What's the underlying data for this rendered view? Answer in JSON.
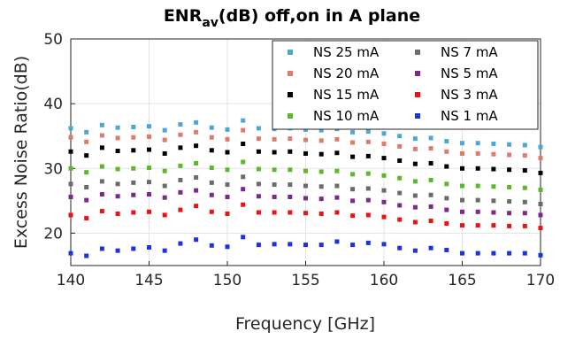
{
  "chart_data": {
    "type": "scatter",
    "title": "ENR",
    "title_subscript": "av",
    "title_rest": "(dB) off,on in A plane",
    "xlabel": "Frequency [GHz]",
    "ylabel": "Excess Noise Ratio(dB)",
    "xlim": [
      140,
      170
    ],
    "ylim": [
      15,
      50
    ],
    "xticks": [
      140,
      145,
      150,
      155,
      160,
      165,
      170
    ],
    "yticks": [
      20,
      30,
      40,
      50
    ],
    "grid": true,
    "legend_position": "top-right",
    "x": [
      140,
      141,
      142,
      143,
      144,
      145,
      146,
      147,
      148,
      149,
      150,
      151,
      152,
      153,
      154,
      155,
      156,
      157,
      158,
      159,
      160,
      161,
      162,
      163,
      164,
      165,
      166,
      167,
      168,
      169,
      170
    ],
    "series": [
      {
        "name": "NS 25 mA",
        "color": "#4fa6d6",
        "values": [
          36.2,
          35.6,
          36.7,
          36.3,
          36.4,
          36.5,
          35.9,
          36.8,
          37.1,
          36.3,
          36.0,
          37.4,
          36.2,
          36.1,
          36.2,
          36.0,
          35.9,
          36.1,
          35.6,
          35.7,
          35.4,
          35.0,
          34.6,
          34.7,
          34.2,
          33.9,
          33.9,
          33.8,
          33.7,
          33.6,
          33.3
        ]
      },
      {
        "name": "NS 20 mA",
        "color": "#de7b6c",
        "values": [
          34.8,
          34.1,
          35.1,
          34.7,
          34.8,
          34.9,
          34.4,
          35.2,
          35.6,
          34.8,
          34.5,
          35.9,
          34.6,
          34.5,
          34.6,
          34.4,
          34.3,
          34.5,
          34.0,
          34.1,
          33.8,
          33.4,
          33.0,
          33.1,
          32.6,
          32.3,
          32.3,
          32.2,
          32.1,
          32.0,
          31.6
        ]
      },
      {
        "name": "NS 15 mA",
        "color": "#000000",
        "values": [
          32.6,
          32.0,
          33.2,
          32.7,
          32.8,
          32.9,
          32.3,
          33.2,
          33.5,
          32.8,
          32.5,
          33.8,
          32.6,
          32.5,
          32.6,
          32.3,
          32.2,
          32.4,
          31.8,
          31.9,
          31.6,
          31.2,
          30.7,
          30.8,
          30.3,
          30.0,
          30.0,
          29.9,
          29.8,
          29.7,
          29.3
        ]
      },
      {
        "name": "NS 10 mA",
        "color": "#5cb82a",
        "values": [
          30.0,
          29.4,
          30.3,
          29.9,
          30.0,
          30.1,
          29.6,
          30.4,
          30.8,
          30.1,
          29.8,
          31.0,
          29.9,
          29.8,
          29.8,
          29.6,
          29.5,
          29.6,
          29.1,
          29.2,
          28.9,
          28.5,
          28.0,
          28.2,
          27.6,
          27.3,
          27.3,
          27.2,
          27.1,
          27.0,
          26.7
        ]
      },
      {
        "name": "NS 7 mA",
        "color": "#6b6b6b",
        "values": [
          27.6,
          27.1,
          28.0,
          27.6,
          27.8,
          27.9,
          27.3,
          28.2,
          28.6,
          27.8,
          27.5,
          28.7,
          27.6,
          27.5,
          27.5,
          27.3,
          27.2,
          27.3,
          26.8,
          26.9,
          26.6,
          26.2,
          25.8,
          25.9,
          25.4,
          25.1,
          25.1,
          25.0,
          24.9,
          24.8,
          24.5
        ]
      },
      {
        "name": "NS 5 mA",
        "color": "#7b2a8a",
        "values": [
          25.6,
          25.1,
          26.0,
          25.7,
          25.9,
          26.0,
          25.5,
          26.3,
          26.6,
          25.9,
          25.6,
          26.8,
          25.7,
          25.6,
          25.6,
          25.4,
          25.3,
          25.5,
          25.0,
          25.1,
          24.8,
          24.3,
          24.0,
          24.1,
          23.6,
          23.3,
          23.3,
          23.2,
          23.1,
          23.1,
          22.8
        ]
      },
      {
        "name": "NS 3 mA",
        "color": "#ee1111",
        "values": [
          22.8,
          22.3,
          23.4,
          23.0,
          23.2,
          23.3,
          22.8,
          23.6,
          24.2,
          23.3,
          23.0,
          24.4,
          23.2,
          23.2,
          23.2,
          23.1,
          23.0,
          23.2,
          22.7,
          22.8,
          22.5,
          22.1,
          21.7,
          21.9,
          21.5,
          21.2,
          21.2,
          21.2,
          21.1,
          21.1,
          20.8
        ]
      },
      {
        "name": "NS 1 mA",
        "color": "#1a33dd",
        "values": [
          16.9,
          16.5,
          17.6,
          17.3,
          17.6,
          17.8,
          17.3,
          18.4,
          19.0,
          18.1,
          17.9,
          19.4,
          18.2,
          18.3,
          18.3,
          18.2,
          18.2,
          18.7,
          18.2,
          18.5,
          18.3,
          17.7,
          17.3,
          17.7,
          17.4,
          16.9,
          16.9,
          16.9,
          16.9,
          16.9,
          16.6
        ]
      }
    ]
  }
}
